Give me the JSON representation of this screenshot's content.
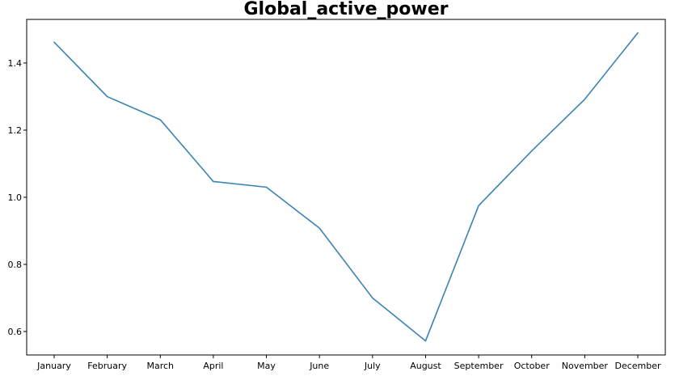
{
  "chart_data": {
    "type": "line",
    "title": "Global_active_power",
    "xlabel": "",
    "ylabel": "",
    "categories": [
      "January",
      "February",
      "March",
      "April",
      "May",
      "June",
      "July",
      "August",
      "September",
      "October",
      "November",
      "December"
    ],
    "series": [
      {
        "values": [
          1.462,
          1.3,
          1.231,
          1.047,
          1.03,
          0.908,
          0.7,
          0.572,
          0.975,
          1.138,
          1.292,
          1.49
        ],
        "color": "#3a84b3"
      }
    ],
    "y_ticks": [
      0.6,
      0.8,
      1.0,
      1.2,
      1.4
    ],
    "y_tick_labels": [
      "0.6",
      "0.8",
      "1.0",
      "1.2",
      "1.4"
    ],
    "ylim": [
      0.53,
      1.53
    ],
    "grid": false,
    "legend": "none"
  }
}
